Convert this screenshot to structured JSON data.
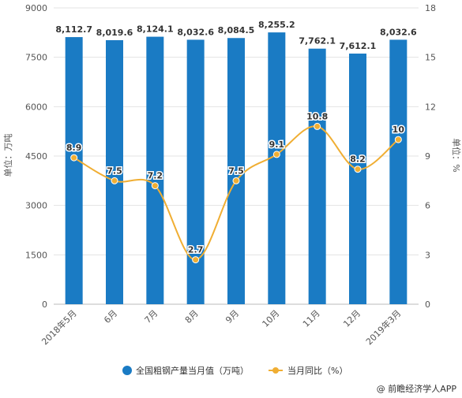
{
  "chart_data": {
    "type": "bar",
    "categories": [
      "2018年5月",
      "6月",
      "7月",
      "8月",
      "9月",
      "10月",
      "11月",
      "12月",
      "2019年3月"
    ],
    "series": [
      {
        "name": "全国粗钢产量当月值（万吨）",
        "type": "bar",
        "axis": "left",
        "values": [
          8112.7,
          8019.6,
          8124.1,
          8032.6,
          8084.5,
          8255.2,
          7762.1,
          7612.1,
          8032.6
        ],
        "labels": [
          "8,112.7",
          "8,019.6",
          "8,124.1",
          "8,032.6",
          "8,084.5",
          "8,255.2",
          "7,762.1",
          "7,612.1",
          "8,032.6"
        ],
        "color": "#1a7bc4"
      },
      {
        "name": "当月同比（%）",
        "type": "line",
        "axis": "right",
        "values": [
          8.9,
          7.5,
          7.2,
          2.7,
          7.5,
          9.1,
          10.8,
          8.2,
          10
        ],
        "labels": [
          "8.9",
          "7.5",
          "7.2",
          "2.7",
          "7.5",
          "9.1",
          "10.8",
          "8.2",
          "10"
        ],
        "color": "#f0ae33"
      }
    ],
    "y_left": {
      "label": "单位：万吨",
      "ylim": [
        0,
        9000
      ],
      "ticks": [
        "0",
        "1500",
        "3000",
        "4500",
        "6000",
        "7500",
        "9000"
      ]
    },
    "y_right": {
      "label": "单位：%",
      "ylim": [
        0,
        18
      ],
      "ticks": [
        "0",
        "3",
        "6",
        "9",
        "12",
        "15",
        "18"
      ]
    },
    "grid": true,
    "legend_position": "bottom"
  },
  "source": "@ 前瞻经济学人APP"
}
